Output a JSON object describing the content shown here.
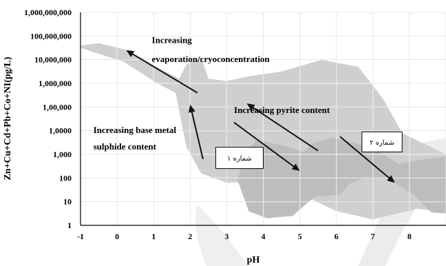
{
  "chart_data": {
    "type": "area",
    "xlabel": "pH",
    "ylabel": "Zn+Cu+Cd+Pb+Co+NI(pg/L)",
    "xlim": [
      -1,
      9
    ],
    "ylim_log10": [
      0,
      9
    ],
    "grid": true,
    "x_ticks": [
      "-1",
      "0",
      "1",
      "2",
      "3",
      "4",
      "5",
      "6",
      "7",
      "8"
    ],
    "y_ticks": [
      "1",
      "10",
      "100",
      "1,000",
      "1,0000",
      "1,00,000",
      "1,000,000",
      "10,000,000",
      "100,000,000",
      "1,000,000,000"
    ],
    "annotations": [
      {
        "text": "Increasing",
        "x": 0.95,
        "y": 7.7
      },
      {
        "text": "evaporation/cryoconcentration",
        "x": 0.95,
        "y": 6.9
      },
      {
        "text": "Increasing pyrite content",
        "x": 3.2,
        "y": 4.75
      },
      {
        "text": "Increasing base metal",
        "x": -0.65,
        "y": 3.9
      },
      {
        "text": "sulphide content",
        "x": -0.65,
        "y": 3.2
      }
    ],
    "label_boxes": [
      {
        "text": "شماره ۱",
        "x": [
          2.7,
          4.0
        ],
        "y": [
          2.4,
          3.3
        ]
      },
      {
        "text": "شماره ۲",
        "x": [
          6.7,
          7.8
        ],
        "y": [
          3.1,
          3.95
        ]
      }
    ],
    "arrows": [
      {
        "from": [
          2.2,
          5.6
        ],
        "to": [
          0.25,
          7.4
        ]
      },
      {
        "from": [
          2.35,
          2.8
        ],
        "to": [
          2.0,
          5.1
        ]
      },
      {
        "from": [
          5.5,
          3.15
        ],
        "to": [
          3.55,
          5.15
        ]
      },
      {
        "from": [
          3.2,
          4.35
        ],
        "to": [
          5.0,
          2.3
        ]
      },
      {
        "from": [
          6.1,
          3.75
        ],
        "to": [
          7.6,
          1.8
        ]
      }
    ],
    "regions": [
      {
        "name": "light",
        "color": "#cfcfcf",
        "points": [
          [
            -1.0,
            7.6
          ],
          [
            -0.5,
            7.7
          ],
          [
            0.3,
            7.4
          ],
          [
            1.2,
            6.6
          ],
          [
            1.7,
            6.2
          ],
          [
            1.9,
            6.8
          ],
          [
            2.3,
            7.1
          ],
          [
            2.5,
            6.2
          ],
          [
            3.0,
            6.1
          ],
          [
            3.6,
            6.3
          ],
          [
            4.5,
            6.5
          ],
          [
            5.6,
            7.0
          ],
          [
            6.6,
            6.7
          ],
          [
            7.3,
            5.3
          ],
          [
            7.8,
            3.9
          ],
          [
            8.6,
            3.3
          ],
          [
            9.0,
            3.0
          ],
          [
            9.0,
            0.55
          ],
          [
            8.2,
            0.7
          ],
          [
            7.0,
            0.25
          ],
          [
            6.0,
            0.6
          ],
          [
            4.5,
            1.7
          ],
          [
            3.6,
            1.85
          ],
          [
            3.0,
            1.8
          ],
          [
            2.3,
            2.2
          ],
          [
            1.9,
            3.3
          ],
          [
            1.6,
            5.6
          ],
          [
            1.1,
            6.0
          ],
          [
            0.2,
            6.9
          ],
          [
            -0.6,
            7.3
          ],
          [
            -1.0,
            7.5
          ]
        ]
      },
      {
        "name": "dark",
        "color": "#bdbdbd",
        "points": [
          [
            3.3,
            1.9
          ],
          [
            3.5,
            3.0
          ],
          [
            3.8,
            3.6
          ],
          [
            4.5,
            3.4
          ],
          [
            5.1,
            3.1
          ],
          [
            5.4,
            3.5
          ],
          [
            5.9,
            3.7
          ],
          [
            7.0,
            3.3
          ],
          [
            7.7,
            2.6
          ],
          [
            8.4,
            2.8
          ],
          [
            9.0,
            2.9
          ],
          [
            9.0,
            0.5
          ],
          [
            8.6,
            0.55
          ],
          [
            8.1,
            1.3
          ],
          [
            7.4,
            2.0
          ],
          [
            6.8,
            2.0
          ],
          [
            6.4,
            1.8
          ],
          [
            6.1,
            1.3
          ],
          [
            5.4,
            1.2
          ],
          [
            4.8,
            0.4
          ],
          [
            4.1,
            0.3
          ],
          [
            3.6,
            0.6
          ]
        ]
      }
    ]
  }
}
